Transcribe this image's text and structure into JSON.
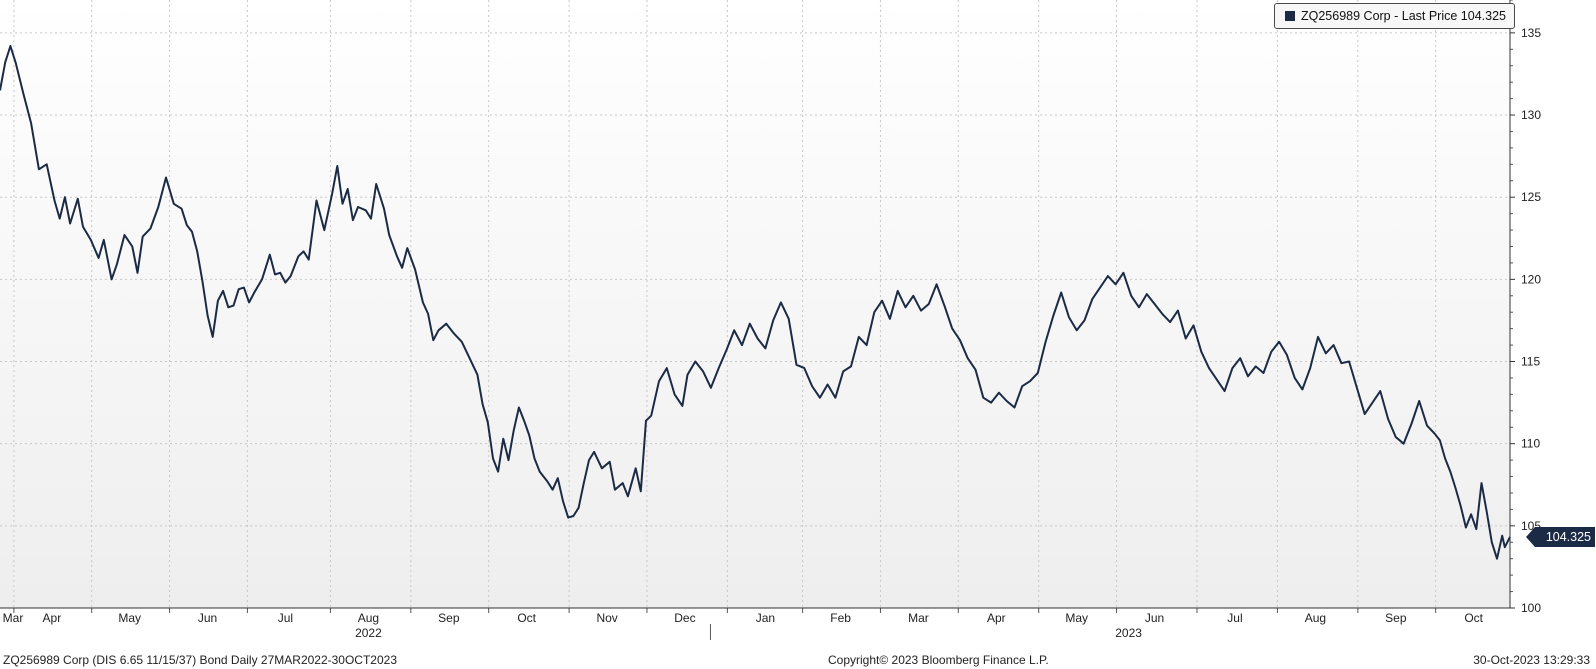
{
  "legend": {
    "label": "ZQ256989 Corp - Last Price 104.325",
    "swatch_color": "#1b2b45"
  },
  "last_price_badge": "104.325",
  "footer": {
    "left": "ZQ256989 Corp (DIS 6.65 11/15/37) Bond  Daily 27MAR2022-30OCT2023",
    "center": "Copyright© 2023 Bloomberg Finance L.P.",
    "right": "30-Oct-2023 13:29:33"
  },
  "colors": {
    "line": "#1b2b45",
    "grid": "#c8c8c8",
    "background_top": "#ffffff",
    "background_bottom": "#eeeeee"
  },
  "chart_data": {
    "type": "line",
    "title": "",
    "xlabel": "",
    "ylabel": "",
    "ylim": [
      100,
      137
    ],
    "y_ticks": [
      100,
      105,
      110,
      115,
      120,
      125,
      130,
      135
    ],
    "y_axis_side": "right",
    "x_range": [
      "2022-03-27",
      "2023-10-30"
    ],
    "month_labels": [
      {
        "date": "2022-03-27",
        "label": "Mar"
      },
      {
        "date": "2022-04-16",
        "label": "Apr"
      },
      {
        "date": "2022-05-16",
        "label": "May"
      },
      {
        "date": "2022-06-15",
        "label": "Jun"
      },
      {
        "date": "2022-07-15",
        "label": "Jul"
      },
      {
        "date": "2022-08-16",
        "label": "Aug"
      },
      {
        "date": "2022-09-16",
        "label": "Sep"
      },
      {
        "date": "2022-10-16",
        "label": "Oct"
      },
      {
        "date": "2022-11-16",
        "label": "Nov"
      },
      {
        "date": "2022-12-16",
        "label": "Dec"
      },
      {
        "date": "2023-01-16",
        "label": "Jan"
      },
      {
        "date": "2023-02-14",
        "label": "Feb"
      },
      {
        "date": "2023-03-16",
        "label": "Mar"
      },
      {
        "date": "2023-04-15",
        "label": "Apr"
      },
      {
        "date": "2023-05-16",
        "label": "May"
      },
      {
        "date": "2023-06-15",
        "label": "Jun"
      },
      {
        "date": "2023-07-16",
        "label": "Jul"
      },
      {
        "date": "2023-08-16",
        "label": "Aug"
      },
      {
        "date": "2023-09-16",
        "label": "Sep"
      },
      {
        "date": "2023-10-16",
        "label": "Oct"
      }
    ],
    "year_labels": [
      {
        "date": "2022-08-16",
        "label": "2022"
      },
      {
        "date": "2023-06-05",
        "label": "2023"
      }
    ],
    "year_divider_date": "2023-01-01",
    "series": [
      {
        "name": "ZQ256989 Corp - Last Price",
        "last_value": 104.325,
        "points": [
          [
            "2022-03-27",
            131.5
          ],
          [
            "2022-03-29",
            133.2
          ],
          [
            "2022-03-31",
            134.2
          ],
          [
            "2022-04-02",
            133.2
          ],
          [
            "2022-04-05",
            131.3
          ],
          [
            "2022-04-08",
            129.5
          ],
          [
            "2022-04-11",
            126.7
          ],
          [
            "2022-04-14",
            127.0
          ],
          [
            "2022-04-17",
            124.8
          ],
          [
            "2022-04-19",
            123.7
          ],
          [
            "2022-04-21",
            125.0
          ],
          [
            "2022-04-23",
            123.4
          ],
          [
            "2022-04-26",
            124.9
          ],
          [
            "2022-04-28",
            123.2
          ],
          [
            "2022-05-01",
            122.4
          ],
          [
            "2022-05-04",
            121.3
          ],
          [
            "2022-05-06",
            122.4
          ],
          [
            "2022-05-09",
            120.0
          ],
          [
            "2022-05-11",
            120.9
          ],
          [
            "2022-05-14",
            122.7
          ],
          [
            "2022-05-17",
            122.0
          ],
          [
            "2022-05-19",
            120.4
          ],
          [
            "2022-05-21",
            122.6
          ],
          [
            "2022-05-24",
            123.1
          ],
          [
            "2022-05-27",
            124.4
          ],
          [
            "2022-05-30",
            126.2
          ],
          [
            "2022-06-02",
            124.6
          ],
          [
            "2022-06-05",
            124.3
          ],
          [
            "2022-06-07",
            123.3
          ],
          [
            "2022-06-09",
            122.9
          ],
          [
            "2022-06-11",
            121.7
          ],
          [
            "2022-06-13",
            119.9
          ],
          [
            "2022-06-15",
            117.8
          ],
          [
            "2022-06-17",
            116.5
          ],
          [
            "2022-06-19",
            118.7
          ],
          [
            "2022-06-21",
            119.3
          ],
          [
            "2022-06-23",
            118.3
          ],
          [
            "2022-06-25",
            118.4
          ],
          [
            "2022-06-27",
            119.4
          ],
          [
            "2022-06-29",
            119.5
          ],
          [
            "2022-07-01",
            118.6
          ],
          [
            "2022-07-03",
            119.2
          ],
          [
            "2022-07-06",
            120.0
          ],
          [
            "2022-07-09",
            121.5
          ],
          [
            "2022-07-11",
            120.3
          ],
          [
            "2022-07-13",
            120.4
          ],
          [
            "2022-07-15",
            119.8
          ],
          [
            "2022-07-17",
            120.2
          ],
          [
            "2022-07-20",
            121.4
          ],
          [
            "2022-07-22",
            121.7
          ],
          [
            "2022-07-24",
            121.2
          ],
          [
            "2022-07-27",
            124.8
          ],
          [
            "2022-07-30",
            123.0
          ],
          [
            "2022-08-02",
            125.2
          ],
          [
            "2022-08-04",
            126.9
          ],
          [
            "2022-08-06",
            124.6
          ],
          [
            "2022-08-08",
            125.5
          ],
          [
            "2022-08-10",
            123.6
          ],
          [
            "2022-08-12",
            124.4
          ],
          [
            "2022-08-15",
            124.2
          ],
          [
            "2022-08-17",
            123.7
          ],
          [
            "2022-08-19",
            125.8
          ],
          [
            "2022-08-22",
            124.3
          ],
          [
            "2022-08-24",
            122.7
          ],
          [
            "2022-08-27",
            121.4
          ],
          [
            "2022-08-29",
            120.7
          ],
          [
            "2022-08-31",
            121.9
          ],
          [
            "2022-09-03",
            120.6
          ],
          [
            "2022-09-06",
            118.6
          ],
          [
            "2022-09-08",
            117.9
          ],
          [
            "2022-09-10",
            116.3
          ],
          [
            "2022-09-12",
            116.9
          ],
          [
            "2022-09-15",
            117.3
          ],
          [
            "2022-09-18",
            116.7
          ],
          [
            "2022-09-21",
            116.2
          ],
          [
            "2022-09-24",
            115.2
          ],
          [
            "2022-09-27",
            114.2
          ],
          [
            "2022-09-29",
            112.4
          ],
          [
            "2022-10-01",
            111.3
          ],
          [
            "2022-10-03",
            109.1
          ],
          [
            "2022-10-05",
            108.3
          ],
          [
            "2022-10-07",
            110.3
          ],
          [
            "2022-10-09",
            109.0
          ],
          [
            "2022-10-11",
            110.8
          ],
          [
            "2022-10-13",
            112.2
          ],
          [
            "2022-10-15",
            111.4
          ],
          [
            "2022-10-17",
            110.5
          ],
          [
            "2022-10-19",
            109.1
          ],
          [
            "2022-10-21",
            108.3
          ],
          [
            "2022-10-24",
            107.7
          ],
          [
            "2022-10-26",
            107.2
          ],
          [
            "2022-10-28",
            107.9
          ],
          [
            "2022-10-30",
            106.5
          ],
          [
            "2022-11-01",
            105.5
          ],
          [
            "2022-11-03",
            105.6
          ],
          [
            "2022-11-05",
            106.1
          ],
          [
            "2022-11-07",
            107.6
          ],
          [
            "2022-11-09",
            109.0
          ],
          [
            "2022-11-11",
            109.5
          ],
          [
            "2022-11-14",
            108.5
          ],
          [
            "2022-11-17",
            108.9
          ],
          [
            "2022-11-19",
            107.2
          ],
          [
            "2022-11-22",
            107.6
          ],
          [
            "2022-11-24",
            106.8
          ],
          [
            "2022-11-27",
            108.5
          ],
          [
            "2022-11-29",
            107.1
          ],
          [
            "2022-12-01",
            111.4
          ],
          [
            "2022-12-03",
            111.7
          ],
          [
            "2022-12-06",
            113.8
          ],
          [
            "2022-12-09",
            114.6
          ],
          [
            "2022-12-12",
            113.0
          ],
          [
            "2022-12-15",
            112.3
          ],
          [
            "2022-12-17",
            114.2
          ],
          [
            "2022-12-20",
            115.0
          ],
          [
            "2022-12-23",
            114.4
          ],
          [
            "2022-12-26",
            113.4
          ],
          [
            "2022-12-29",
            114.6
          ],
          [
            "2023-01-01",
            115.7
          ],
          [
            "2023-01-04",
            116.9
          ],
          [
            "2023-01-07",
            116.0
          ],
          [
            "2023-01-10",
            117.3
          ],
          [
            "2023-01-13",
            116.4
          ],
          [
            "2023-01-16",
            115.8
          ],
          [
            "2023-01-19",
            117.5
          ],
          [
            "2023-01-22",
            118.6
          ],
          [
            "2023-01-25",
            117.6
          ],
          [
            "2023-01-28",
            114.8
          ],
          [
            "2023-01-31",
            114.6
          ],
          [
            "2023-02-03",
            113.5
          ],
          [
            "2023-02-06",
            112.8
          ],
          [
            "2023-02-09",
            113.6
          ],
          [
            "2023-02-12",
            112.8
          ],
          [
            "2023-02-15",
            114.4
          ],
          [
            "2023-02-18",
            114.7
          ],
          [
            "2023-02-21",
            116.5
          ],
          [
            "2023-02-24",
            116.0
          ],
          [
            "2023-02-27",
            118.0
          ],
          [
            "2023-03-02",
            118.7
          ],
          [
            "2023-03-05",
            117.6
          ],
          [
            "2023-03-08",
            119.3
          ],
          [
            "2023-03-11",
            118.3
          ],
          [
            "2023-03-14",
            119.0
          ],
          [
            "2023-03-17",
            118.1
          ],
          [
            "2023-03-20",
            118.5
          ],
          [
            "2023-03-23",
            119.7
          ],
          [
            "2023-03-26",
            118.4
          ],
          [
            "2023-03-29",
            117.0
          ],
          [
            "2023-04-01",
            116.3
          ],
          [
            "2023-04-04",
            115.2
          ],
          [
            "2023-04-07",
            114.5
          ],
          [
            "2023-04-10",
            112.8
          ],
          [
            "2023-04-13",
            112.5
          ],
          [
            "2023-04-16",
            113.1
          ],
          [
            "2023-04-19",
            112.6
          ],
          [
            "2023-04-22",
            112.2
          ],
          [
            "2023-04-25",
            113.5
          ],
          [
            "2023-04-28",
            113.8
          ],
          [
            "2023-05-01",
            114.3
          ],
          [
            "2023-05-04",
            116.2
          ],
          [
            "2023-05-07",
            117.8
          ],
          [
            "2023-05-10",
            119.2
          ],
          [
            "2023-05-13",
            117.7
          ],
          [
            "2023-05-16",
            116.9
          ],
          [
            "2023-05-19",
            117.5
          ],
          [
            "2023-05-22",
            118.8
          ],
          [
            "2023-05-25",
            119.5
          ],
          [
            "2023-05-28",
            120.2
          ],
          [
            "2023-05-31",
            119.7
          ],
          [
            "2023-06-03",
            120.4
          ],
          [
            "2023-06-06",
            119.0
          ],
          [
            "2023-06-09",
            118.3
          ],
          [
            "2023-06-12",
            119.1
          ],
          [
            "2023-06-15",
            118.5
          ],
          [
            "2023-06-18",
            117.9
          ],
          [
            "2023-06-21",
            117.4
          ],
          [
            "2023-06-24",
            118.1
          ],
          [
            "2023-06-27",
            116.4
          ],
          [
            "2023-06-30",
            117.2
          ],
          [
            "2023-07-03",
            115.6
          ],
          [
            "2023-07-06",
            114.6
          ],
          [
            "2023-07-09",
            113.9
          ],
          [
            "2023-07-12",
            113.2
          ],
          [
            "2023-07-15",
            114.6
          ],
          [
            "2023-07-18",
            115.2
          ],
          [
            "2023-07-21",
            114.1
          ],
          [
            "2023-07-24",
            114.7
          ],
          [
            "2023-07-27",
            114.3
          ],
          [
            "2023-07-30",
            115.6
          ],
          [
            "2023-08-02",
            116.2
          ],
          [
            "2023-08-05",
            115.4
          ],
          [
            "2023-08-08",
            114.0
          ],
          [
            "2023-08-11",
            113.3
          ],
          [
            "2023-08-14",
            114.6
          ],
          [
            "2023-08-17",
            116.5
          ],
          [
            "2023-08-20",
            115.5
          ],
          [
            "2023-08-23",
            116.0
          ],
          [
            "2023-08-26",
            114.9
          ],
          [
            "2023-08-29",
            115.0
          ],
          [
            "2023-09-01",
            113.4
          ],
          [
            "2023-09-04",
            111.8
          ],
          [
            "2023-09-07",
            112.5
          ],
          [
            "2023-09-10",
            113.2
          ],
          [
            "2023-09-13",
            111.5
          ],
          [
            "2023-09-16",
            110.4
          ],
          [
            "2023-09-19",
            110.0
          ],
          [
            "2023-09-22",
            111.2
          ],
          [
            "2023-09-25",
            112.6
          ],
          [
            "2023-09-28",
            111.1
          ],
          [
            "2023-10-01",
            110.6
          ],
          [
            "2023-10-03",
            110.2
          ],
          [
            "2023-10-05",
            109.1
          ],
          [
            "2023-10-07",
            108.3
          ],
          [
            "2023-10-09",
            107.3
          ],
          [
            "2023-10-11",
            106.2
          ],
          [
            "2023-10-13",
            104.9
          ],
          [
            "2023-10-15",
            105.7
          ],
          [
            "2023-10-17",
            104.8
          ],
          [
            "2023-10-19",
            107.6
          ],
          [
            "2023-10-21",
            105.9
          ],
          [
            "2023-10-23",
            104.0
          ],
          [
            "2023-10-25",
            103.0
          ],
          [
            "2023-10-27",
            104.4
          ],
          [
            "2023-10-28",
            103.7
          ],
          [
            "2023-10-30",
            104.325
          ]
        ]
      }
    ]
  }
}
